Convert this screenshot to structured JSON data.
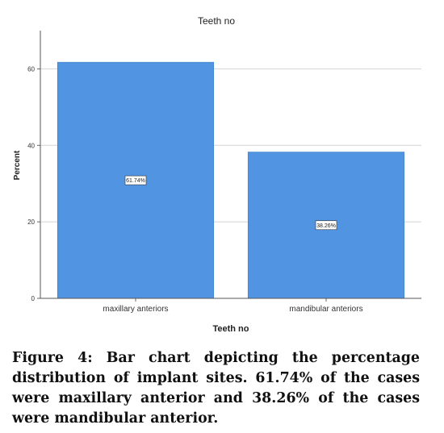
{
  "chart_data": {
    "type": "bar",
    "title": "Teeth no",
    "xlabel": "Teeth no",
    "ylabel": "Percent",
    "categories": [
      "maxillary anteriors",
      "mandibular anteriors"
    ],
    "values": [
      61.74,
      38.26
    ],
    "data_labels": [
      "61.74%",
      "38.26%"
    ],
    "ylim": [
      0,
      70
    ],
    "yticks": [
      0,
      20,
      40,
      60
    ],
    "grid": true,
    "bar_color": "#5194e2"
  },
  "caption": {
    "label": "Figure 4:",
    "text": "Bar chart depicting the percentage distribution of implant sites. 61.74% of the cases were maxillary anterior and 38.26% of the cases were mandibular anterior."
  }
}
